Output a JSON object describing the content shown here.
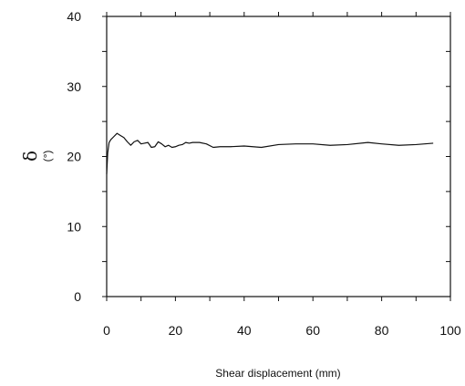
{
  "chart_data": {
    "type": "line",
    "title": "",
    "xlabel": "Shear displacement (mm)",
    "ylabel": "δ",
    "ylabel_unit": "(°)",
    "xlim": [
      0,
      100
    ],
    "ylim": [
      0,
      40
    ],
    "xticks": [
      0,
      20,
      40,
      60,
      80,
      100
    ],
    "yticks": [
      0,
      10,
      20,
      30,
      40
    ],
    "grid": false,
    "series": [
      {
        "color": "#111111",
        "x": [
          0,
          0.3,
          0.7,
          1.2,
          2,
          3,
          4,
          5,
          6,
          7,
          8,
          9,
          10,
          11,
          12,
          13,
          14,
          15,
          16,
          17,
          18,
          19,
          20,
          21,
          22,
          23,
          24,
          25,
          27,
          29,
          31,
          33,
          36,
          40,
          45,
          50,
          55,
          60,
          65,
          70,
          76,
          80,
          85,
          90,
          95
        ],
        "y": [
          17.5,
          20.5,
          22.0,
          22.4,
          22.8,
          23.3,
          23.0,
          22.7,
          22.1,
          21.6,
          22.1,
          22.3,
          21.8,
          21.9,
          22.0,
          21.3,
          21.4,
          22.1,
          21.8,
          21.4,
          21.6,
          21.3,
          21.4,
          21.6,
          21.7,
          22.0,
          21.9,
          22.0,
          22.0,
          21.8,
          21.3,
          21.4,
          21.4,
          21.5,
          21.3,
          21.7,
          21.8,
          21.8,
          21.6,
          21.7,
          22.0,
          21.8,
          21.6,
          21.7,
          21.9
        ]
      }
    ]
  }
}
